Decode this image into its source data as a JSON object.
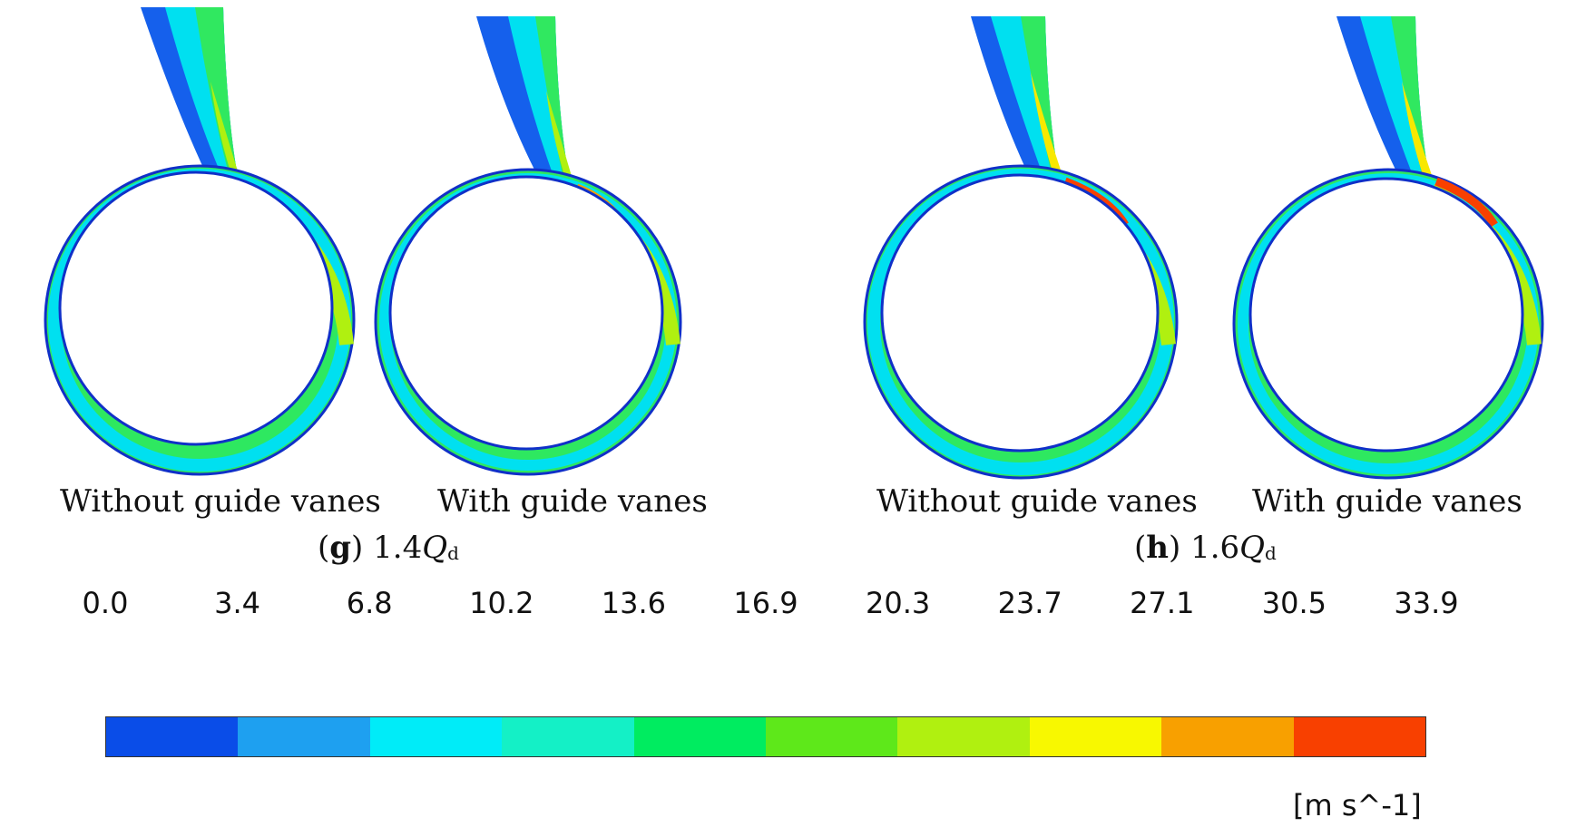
{
  "panels": [
    {
      "letter": "g",
      "factor": "1.4",
      "q": "Q",
      "sub": "d",
      "cases": [
        {
          "label": "Without guide vanes"
        },
        {
          "label": "With guide vanes"
        }
      ]
    },
    {
      "letter": "h",
      "factor": "1.6",
      "q": "Q",
      "sub": "d",
      "cases": [
        {
          "label": "Without guide vanes"
        },
        {
          "label": "With guide vanes"
        }
      ]
    }
  ],
  "colorbar": {
    "ticks": [
      "0.0",
      "3.4",
      "6.8",
      "10.2",
      "13.6",
      "16.9",
      "20.3",
      "23.7",
      "27.1",
      "30.5",
      "33.9"
    ],
    "colors": [
      "#0a4de8",
      "#1ea0f0",
      "#00ecf8",
      "#14f0c6",
      "#00ec60",
      "#5ee81a",
      "#b0f010",
      "#f8f800",
      "#f8a000",
      "#f84000"
    ],
    "units": "[m s^-1]"
  },
  "palette": {
    "wall": "#1030c8",
    "low": "#0a4de8",
    "cyan": "#00e0f0",
    "green": "#2ee860",
    "yellowgreen": "#b0f010",
    "yellow": "#f8e800",
    "orange": "#f8a000",
    "red": "#f84000"
  }
}
